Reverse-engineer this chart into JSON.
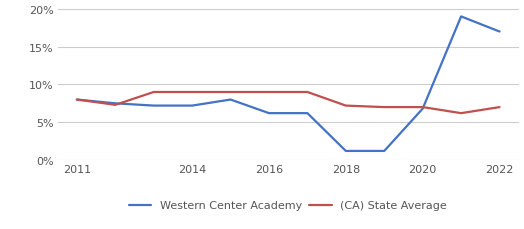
{
  "wca_years": [
    2011,
    2012,
    2013,
    2014,
    2015,
    2016,
    2017,
    2018,
    2019,
    2020,
    2021,
    2022
  ],
  "wca_values": [
    0.08,
    0.075,
    0.072,
    0.072,
    0.08,
    0.062,
    0.062,
    0.012,
    0.012,
    0.068,
    0.19,
    0.17
  ],
  "ca_years": [
    2011,
    2012,
    2013,
    2014,
    2015,
    2016,
    2017,
    2018,
    2019,
    2020,
    2021,
    2022
  ],
  "ca_values": [
    0.08,
    0.073,
    0.09,
    0.09,
    0.09,
    0.09,
    0.09,
    0.072,
    0.07,
    0.07,
    0.062,
    0.07
  ],
  "wca_color": "#4472c4",
  "ca_color": "#c0504d",
  "wca_label": "Western Center Academy",
  "ca_label": "(CA) State Average",
  "xlim": [
    2010.5,
    2022.5
  ],
  "ylim": [
    0.0,
    0.21
  ],
  "yticks": [
    0.0,
    0.05,
    0.1,
    0.15,
    0.2
  ],
  "xticks": [
    2011,
    2014,
    2016,
    2018,
    2020,
    2022
  ],
  "grid_color": "#cccccc",
  "bg_color": "#ffffff",
  "tick_label_color": "#555555",
  "tick_label_size": 8,
  "legend_fontsize": 8,
  "line_width": 1.6
}
